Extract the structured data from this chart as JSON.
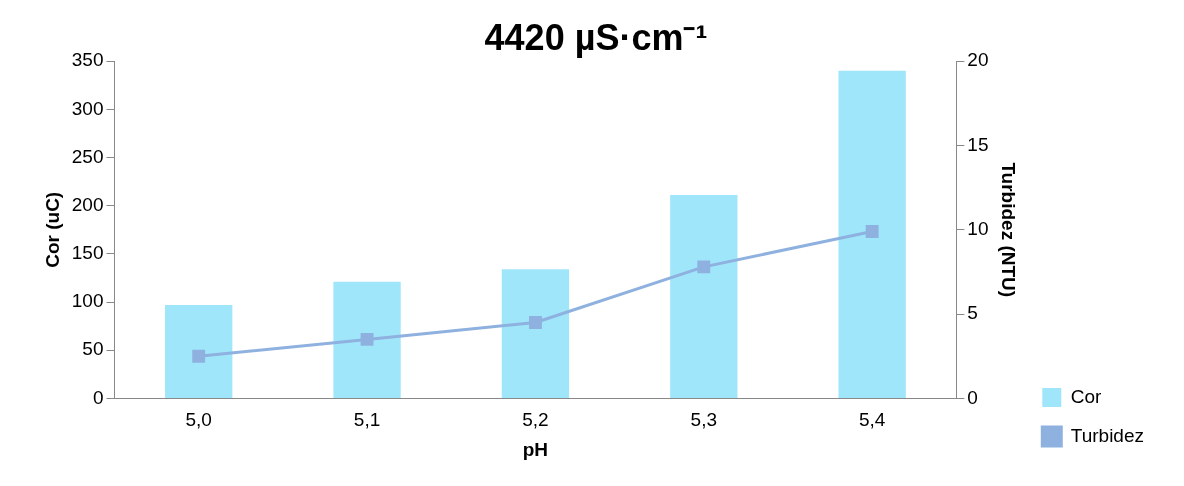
{
  "chart_data": {
    "type": "bar",
    "title": "4420 µS·cm⁻¹",
    "xlabel": "pH",
    "ylabel": "Cor (uC)",
    "y2label": "Turbidez (NTU)",
    "categories": [
      "5,0",
      "5,1",
      "5,2",
      "5,3",
      "5,4"
    ],
    "series": [
      {
        "name": "Cor",
        "color": "#a0e6fb",
        "values": [
          97,
          121,
          134,
          211,
          340
        ]
      },
      {
        "name": "Turbidez",
        "type": "line",
        "axis": "y2",
        "color": "#8eb1df",
        "marker": "square",
        "values": [
          2.5,
          3.5,
          4.5,
          7.8,
          9.9
        ]
      }
    ],
    "ylim": [
      0,
      350
    ],
    "yticks": [
      0,
      50,
      100,
      150,
      200,
      250,
      300,
      350
    ],
    "y2lim": [
      0,
      20
    ],
    "y2ticks": [
      0,
      5,
      10,
      15,
      20
    ],
    "grid": false,
    "legend": "bottom right"
  }
}
